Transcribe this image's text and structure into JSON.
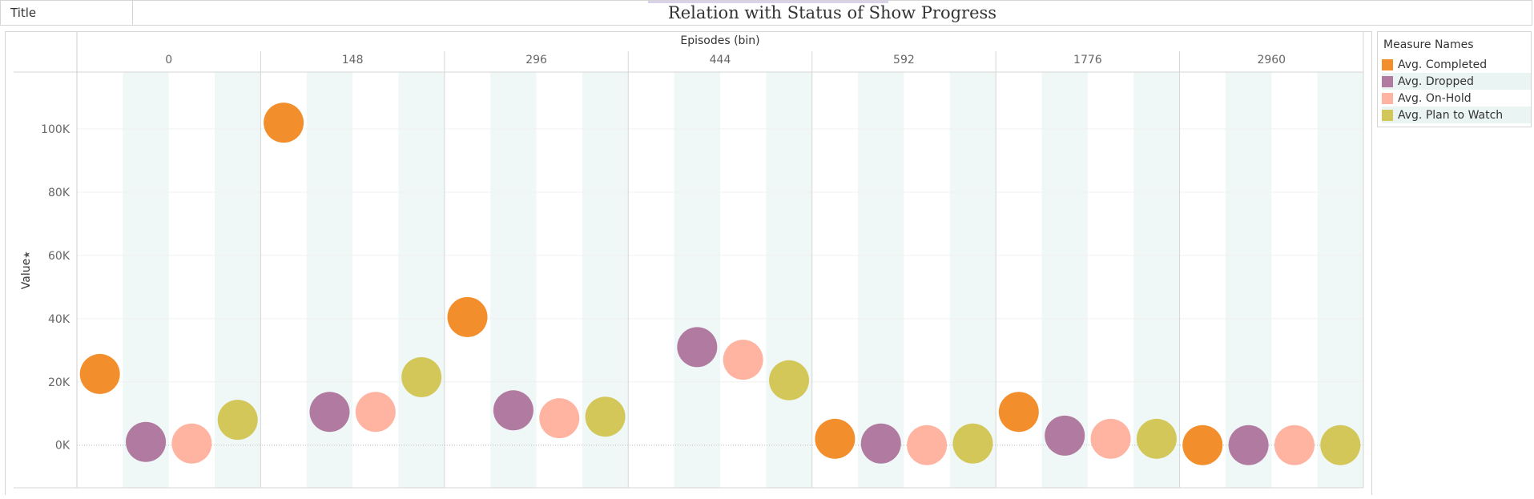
{
  "title_bar": {
    "tab_label": "Title",
    "chart_title": "Relation with Status of Show Progress"
  },
  "legend": {
    "title": "Measure Names",
    "items": [
      {
        "label": "Avg. Completed",
        "color": "#F28E2B"
      },
      {
        "label": "Avg. Dropped",
        "color": "#B07AA1"
      },
      {
        "label": "Avg. On-Hold",
        "color": "#FFB3A1"
      },
      {
        "label": "Avg. Plan to Watch",
        "color": "#D4C75A"
      }
    ]
  },
  "chart_data": {
    "type": "scatter",
    "title": "Relation with Status of Show Progress",
    "xlabel": "Episodes (bin)",
    "ylabel": "Value",
    "categories": [
      "0",
      "148",
      "296",
      "444",
      "592",
      "1776",
      "2960"
    ],
    "measures": [
      "Avg. Completed",
      "Avg. Dropped",
      "Avg. On-Hold",
      "Avg. Plan to Watch"
    ],
    "series": [
      {
        "name": "Avg. Completed",
        "color": "#F28E2B",
        "values": [
          22500,
          102000,
          40500,
          null,
          2000,
          10500,
          0
        ]
      },
      {
        "name": "Avg. Dropped",
        "color": "#B07AA1",
        "values": [
          1000,
          10500,
          11000,
          31000,
          500,
          3000,
          0
        ]
      },
      {
        "name": "Avg. On-Hold",
        "color": "#FFB3A1",
        "values": [
          500,
          10500,
          8500,
          27000,
          0,
          2000,
          0
        ]
      },
      {
        "name": "Avg. Plan to Watch",
        "color": "#D4C75A",
        "values": [
          8000,
          21500,
          9000,
          20500,
          500,
          2000,
          0
        ]
      }
    ],
    "ylim": [
      -13500,
      118000
    ],
    "yticks": [
      0,
      20000,
      40000,
      60000,
      80000,
      100000
    ],
    "ytick_labels": [
      "0K",
      "20K",
      "40K",
      "60K",
      "80K",
      "100K"
    ],
    "grid": true
  }
}
